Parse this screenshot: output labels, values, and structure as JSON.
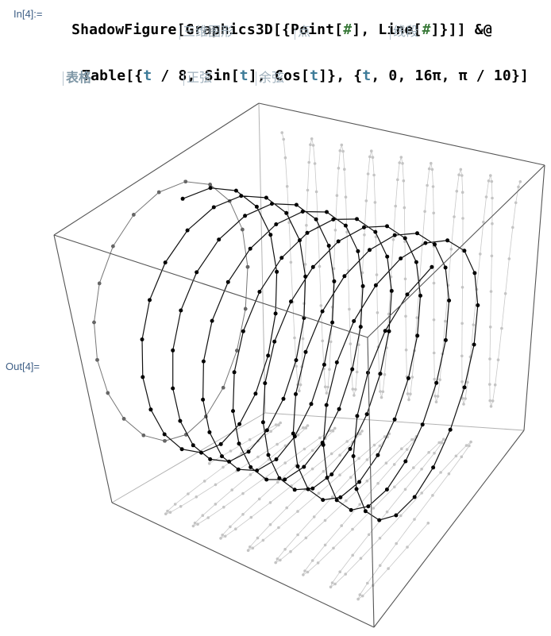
{
  "cell_in": {
    "label": "In[4]:=",
    "line1": {
      "p1": "ShadowFigure[Graphics3D[{Point[",
      "slot1": "#",
      "p2": "], Line[",
      "slot2": "#",
      "p3": "]}]] &@"
    },
    "line1_hints": [
      "三维图形",
      "点",
      "线段"
    ],
    "line2": {
      "p1": "Table[{",
      "v1": "t",
      "p2": " / 8, Sin[",
      "v2": "t",
      "p3": "], Cos[",
      "v3": "t",
      "p4": "]}, {",
      "v4": "t",
      "p5": ", 0, 16π, π / 10}]"
    },
    "line2_hints": [
      "表格",
      "正弦",
      "余弦"
    ]
  },
  "cell_out": {
    "label": "Out[4]="
  },
  "plot": {
    "type": "Graphics3D helix with shadows",
    "t_start": 0,
    "t_end_over_pi": 16,
    "t_step_over_pi": 0.1,
    "box": true
  }
}
